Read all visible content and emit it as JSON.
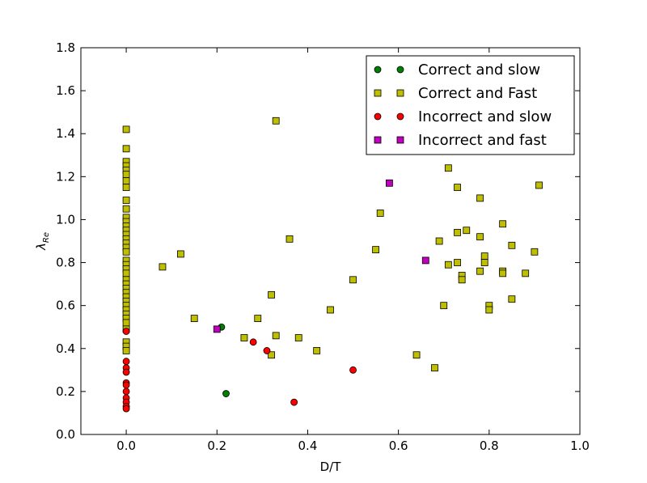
{
  "chart_data": {
    "type": "scatter",
    "xlabel": "D/T",
    "ylabel": "λ_Re",
    "xlim": [
      -0.1,
      1.0
    ],
    "ylim": [
      0.0,
      1.8
    ],
    "x_ticks": [
      "−0.2",
      "0.0",
      "0.2",
      "0.4",
      "0.6",
      "0.8",
      "1.0"
    ],
    "x_ticks_shown": [
      "0.0",
      "0.2",
      "0.4",
      "0.6",
      "0.8",
      "1.0"
    ],
    "y_ticks": [
      "0.0",
      "0.2",
      "0.4",
      "0.6",
      "0.8",
      "1.0",
      "1.2",
      "1.4",
      "1.6",
      "1.8"
    ],
    "grid": false,
    "legend_position": "top-right",
    "series": [
      {
        "name": "Correct and slow",
        "marker": "circle",
        "color": "#008000",
        "points": [
          [
            0.21,
            0.5
          ],
          [
            0.22,
            0.19
          ]
        ]
      },
      {
        "name": "Correct and Fast",
        "marker": "square",
        "color": "#bfbf00",
        "points": [
          [
            0.0,
            1.42
          ],
          [
            0.0,
            1.33
          ],
          [
            0.0,
            1.27
          ],
          [
            0.0,
            1.25
          ],
          [
            0.0,
            1.23
          ],
          [
            0.0,
            1.21
          ],
          [
            0.0,
            1.18
          ],
          [
            0.0,
            1.15
          ],
          [
            0.0,
            1.09
          ],
          [
            0.0,
            1.05
          ],
          [
            0.0,
            1.01
          ],
          [
            0.0,
            0.99
          ],
          [
            0.0,
            0.97
          ],
          [
            0.0,
            0.95
          ],
          [
            0.0,
            0.93
          ],
          [
            0.0,
            0.91
          ],
          [
            0.0,
            0.89
          ],
          [
            0.0,
            0.87
          ],
          [
            0.0,
            0.85
          ],
          [
            0.0,
            0.81
          ],
          [
            0.0,
            0.79
          ],
          [
            0.0,
            0.77
          ],
          [
            0.0,
            0.75
          ],
          [
            0.0,
            0.72
          ],
          [
            0.0,
            0.7
          ],
          [
            0.0,
            0.68
          ],
          [
            0.0,
            0.66
          ],
          [
            0.0,
            0.64
          ],
          [
            0.0,
            0.62
          ],
          [
            0.0,
            0.6
          ],
          [
            0.0,
            0.58
          ],
          [
            0.0,
            0.56
          ],
          [
            0.0,
            0.54
          ],
          [
            0.0,
            0.52
          ],
          [
            0.0,
            0.49
          ],
          [
            0.0,
            0.43
          ],
          [
            0.0,
            0.41
          ],
          [
            0.0,
            0.39
          ],
          [
            0.08,
            0.78
          ],
          [
            0.12,
            0.84
          ],
          [
            0.15,
            0.54
          ],
          [
            0.26,
            0.45
          ],
          [
            0.29,
            0.54
          ],
          [
            0.32,
            0.65
          ],
          [
            0.32,
            0.37
          ],
          [
            0.33,
            1.46
          ],
          [
            0.33,
            0.46
          ],
          [
            0.36,
            0.91
          ],
          [
            0.38,
            0.45
          ],
          [
            0.42,
            0.39
          ],
          [
            0.45,
            0.58
          ],
          [
            0.5,
            0.72
          ],
          [
            0.55,
            0.86
          ],
          [
            0.56,
            1.03
          ],
          [
            0.64,
            0.37
          ],
          [
            0.68,
            0.31
          ],
          [
            0.69,
            0.9
          ],
          [
            0.7,
            0.6
          ],
          [
            0.71,
            1.24
          ],
          [
            0.71,
            0.79
          ],
          [
            0.73,
            1.15
          ],
          [
            0.73,
            0.94
          ],
          [
            0.73,
            0.8
          ],
          [
            0.74,
            0.74
          ],
          [
            0.74,
            0.72
          ],
          [
            0.75,
            0.95
          ],
          [
            0.78,
            1.1
          ],
          [
            0.78,
            0.92
          ],
          [
            0.78,
            0.76
          ],
          [
            0.79,
            0.83
          ],
          [
            0.79,
            0.8
          ],
          [
            0.8,
            0.6
          ],
          [
            0.8,
            0.58
          ],
          [
            0.83,
            0.98
          ],
          [
            0.83,
            0.76
          ],
          [
            0.83,
            0.75
          ],
          [
            0.85,
            0.88
          ],
          [
            0.85,
            0.63
          ],
          [
            0.88,
            0.75
          ],
          [
            0.9,
            0.85
          ],
          [
            0.91,
            1.16
          ]
        ]
      },
      {
        "name": "Incorrect and slow",
        "marker": "circle",
        "color": "#ff0000",
        "points": [
          [
            0.0,
            0.48
          ],
          [
            0.0,
            0.34
          ],
          [
            0.0,
            0.31
          ],
          [
            0.0,
            0.29
          ],
          [
            0.0,
            0.24
          ],
          [
            0.0,
            0.23
          ],
          [
            0.0,
            0.2
          ],
          [
            0.0,
            0.17
          ],
          [
            0.0,
            0.15
          ],
          [
            0.0,
            0.13
          ],
          [
            0.0,
            0.12
          ],
          [
            0.28,
            0.43
          ],
          [
            0.31,
            0.39
          ],
          [
            0.37,
            0.15
          ],
          [
            0.5,
            0.3
          ]
        ]
      },
      {
        "name": "Incorrect and fast",
        "marker": "square",
        "color": "#bf00bf",
        "points": [
          [
            0.2,
            0.49
          ],
          [
            0.58,
            1.17
          ],
          [
            0.66,
            0.81
          ]
        ]
      }
    ]
  }
}
